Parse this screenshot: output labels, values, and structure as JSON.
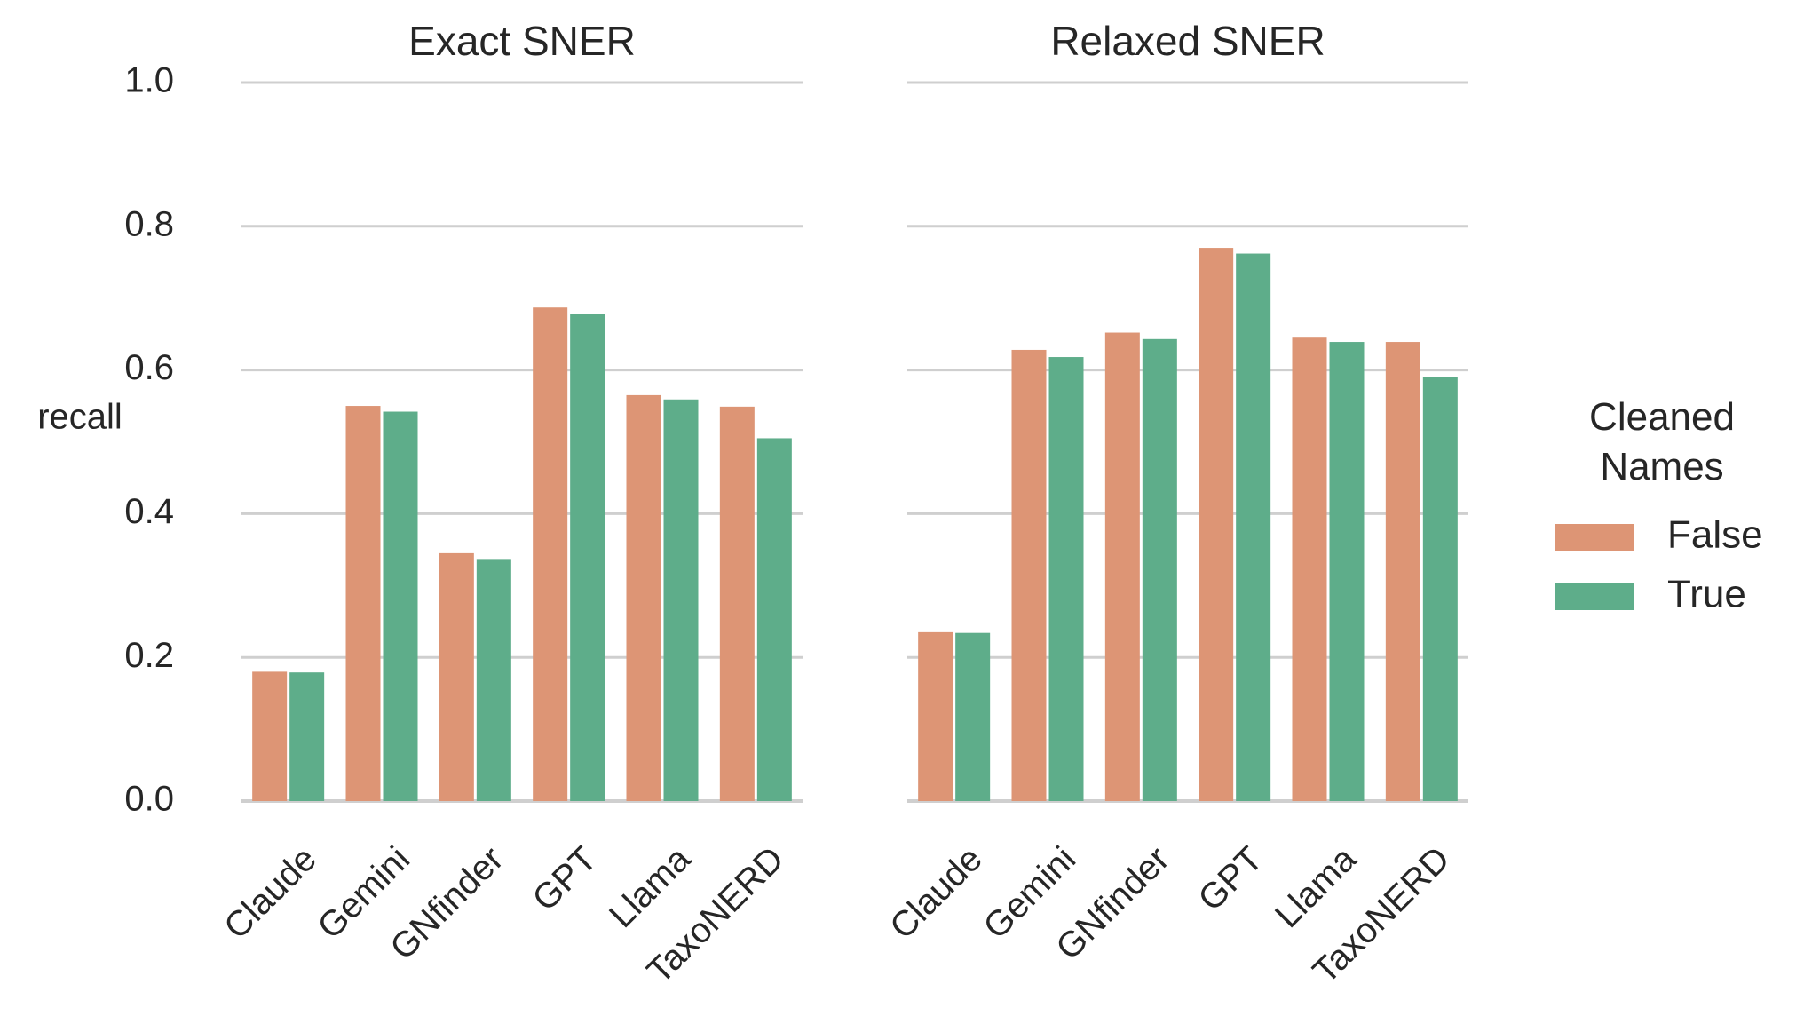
{
  "chart_data": {
    "type": "bar",
    "ylabel": "recall",
    "ylim": [
      0,
      1.0
    ],
    "yticks": [
      "0.0",
      "0.2",
      "0.4",
      "0.6",
      "0.8",
      "1.0"
    ],
    "grid": "horizontal",
    "categories": [
      "Claude",
      "Gemini",
      "GNfinder",
      "GPT",
      "Llama",
      "TaxoNERD"
    ],
    "legend": {
      "title_line1": "Cleaned",
      "title_line2": "Names",
      "placement": "right"
    },
    "colors": {
      "False": "#dd9575",
      "True": "#5ead8a",
      "grid": "#cfcfcf"
    },
    "panels": [
      {
        "title": "Exact SNER",
        "series": [
          {
            "name": "False",
            "values": [
              0.18,
              0.55,
              0.345,
              0.687,
              0.565,
              0.549
            ]
          },
          {
            "name": "True",
            "values": [
              0.179,
              0.542,
              0.337,
              0.678,
              0.559,
              0.505
            ]
          }
        ]
      },
      {
        "title": "Relaxed SNER",
        "series": [
          {
            "name": "False",
            "values": [
              0.235,
              0.628,
              0.652,
              0.77,
              0.645,
              0.639
            ]
          },
          {
            "name": "True",
            "values": [
              0.234,
              0.618,
              0.643,
              0.762,
              0.639,
              0.59
            ]
          }
        ]
      }
    ]
  }
}
